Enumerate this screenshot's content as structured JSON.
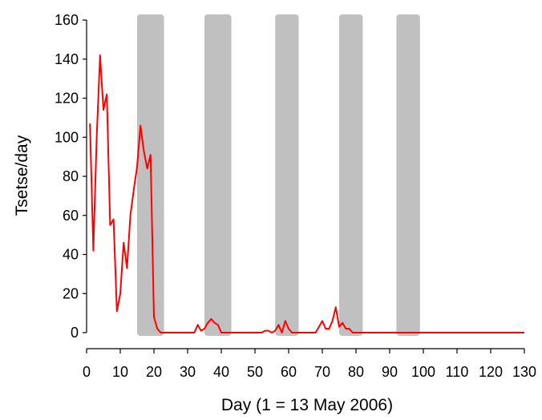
{
  "chart_data": {
    "type": "line",
    "title": "",
    "xlabel": "Day (1 = 13 May 2006)",
    "ylabel": "Tsetse/day",
    "xlim": [
      0,
      130
    ],
    "ylim": [
      0,
      160
    ],
    "x_ticks": [
      0,
      10,
      20,
      30,
      40,
      50,
      60,
      70,
      80,
      90,
      100,
      110,
      120,
      130
    ],
    "x_tick_labels": [
      "0",
      "10",
      "20",
      "30",
      "40",
      "50",
      "60",
      "70",
      "80",
      "90",
      "100",
      "110",
      "120",
      "130"
    ],
    "y_ticks": [
      0,
      20,
      40,
      60,
      80,
      100,
      120,
      140,
      160
    ],
    "y_tick_labels": [
      "0",
      "20",
      "40",
      "60",
      "80",
      "100",
      "120",
      "140",
      "160"
    ],
    "grid": false,
    "legend": "none",
    "shaded_bands": [
      {
        "x_start": 15,
        "x_end": 23
      },
      {
        "x_start": 35,
        "x_end": 43
      },
      {
        "x_start": 56,
        "x_end": 63
      },
      {
        "x_start": 75,
        "x_end": 82
      },
      {
        "x_start": 92,
        "x_end": 99
      }
    ],
    "band_color": "#c0c0c0",
    "series": [
      {
        "color": "#ff0000",
        "x": [
          1,
          2,
          3,
          4,
          5,
          6,
          7,
          8,
          9,
          10,
          11,
          12,
          13,
          14,
          15,
          16,
          17,
          18,
          19,
          20,
          21,
          22,
          23,
          24,
          25,
          26,
          27,
          28,
          29,
          30,
          31,
          32,
          33,
          34,
          35,
          36,
          37,
          38,
          39,
          40,
          41,
          42,
          43,
          44,
          45,
          46,
          47,
          48,
          49,
          50,
          51,
          52,
          53,
          54,
          55,
          56,
          57,
          58,
          59,
          60,
          61,
          62,
          63,
          64,
          65,
          66,
          67,
          68,
          69,
          70,
          71,
          72,
          73,
          74,
          75,
          76,
          77,
          78,
          79,
          80,
          81,
          82,
          85,
          90,
          95,
          100,
          110,
          120,
          130
        ],
        "y": [
          107,
          42,
          100,
          142,
          114,
          122,
          55,
          58,
          11,
          20,
          46,
          33,
          60,
          73,
          85,
          106,
          93,
          84,
          91,
          8,
          2,
          0,
          0,
          0,
          0,
          0,
          0,
          0,
          0,
          0,
          0,
          0,
          4,
          1,
          2,
          5,
          7,
          5,
          4,
          0,
          0,
          0,
          0,
          0,
          0,
          0,
          0,
          0,
          0,
          0,
          0,
          0,
          1,
          1,
          0,
          1,
          4,
          0,
          6,
          2,
          0,
          0,
          0,
          0,
          0,
          0,
          0,
          0,
          3,
          6,
          2,
          2,
          6,
          13,
          3,
          5,
          2,
          2,
          0,
          0,
          0,
          0,
          0,
          0,
          0,
          0,
          0,
          0,
          0
        ]
      }
    ]
  }
}
